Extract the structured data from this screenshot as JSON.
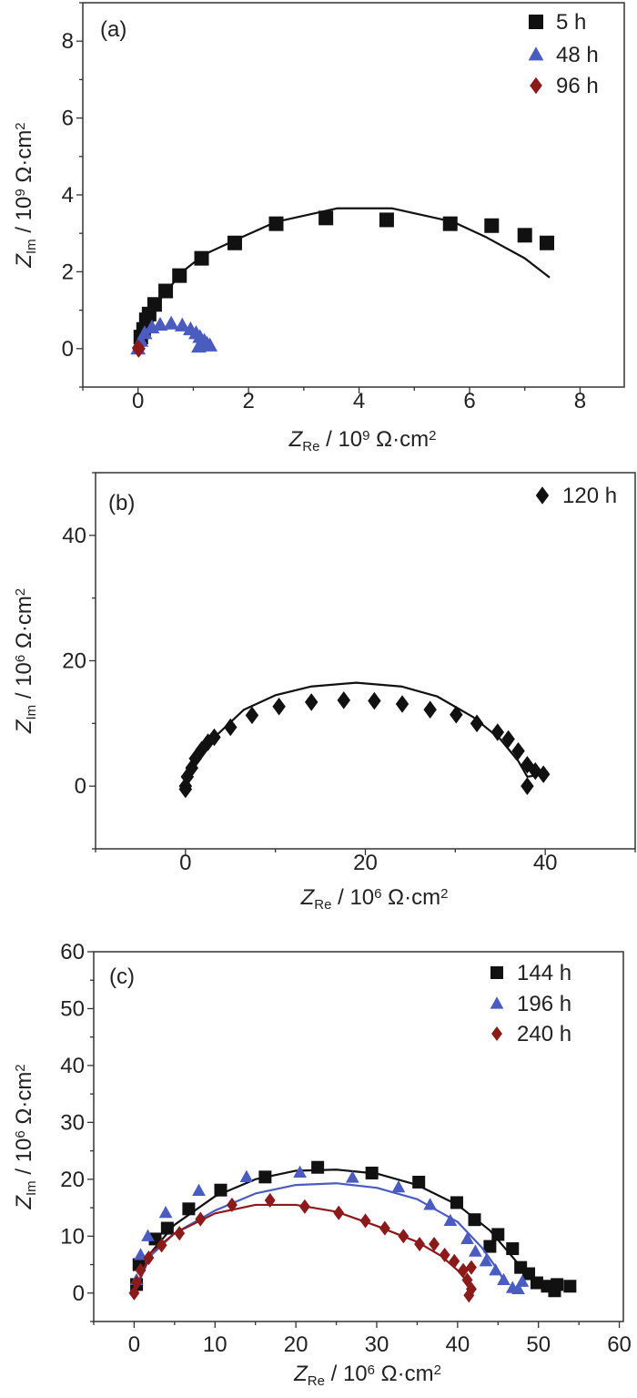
{
  "chart_data": [
    {
      "type": "scatter",
      "panel_label": "(a)",
      "xlabel": {
        "symbol": "Z",
        "sub": "Re",
        "unit": " / 10",
        "exp": "9",
        "unit2": " Ω·cm",
        "exp2": "2"
      },
      "ylabel": {
        "symbol": "Z",
        "sub": "Im",
        "unit": " / 10",
        "exp": "9",
        "unit2": " Ω·cm",
        "exp2": "2"
      },
      "xlim": [
        -1,
        8.8
      ],
      "ylim": [
        -1,
        9
      ],
      "xticks": [
        0,
        2,
        4,
        6,
        8
      ],
      "yticks": [
        0,
        2,
        4,
        6,
        8
      ],
      "minor_step": 1,
      "legend_position": "top-right",
      "series": [
        {
          "name": "5 h",
          "marker": "square",
          "color": "#111111",
          "points": [
            [
              0.05,
              0.3
            ],
            [
              0.1,
              0.5
            ],
            [
              0.15,
              0.75
            ],
            [
              0.2,
              0.9
            ],
            [
              0.3,
              1.15
            ],
            [
              0.5,
              1.5
            ],
            [
              0.75,
              1.9
            ],
            [
              1.15,
              2.35
            ],
            [
              1.75,
              2.75
            ],
            [
              2.5,
              3.25
            ],
            [
              3.4,
              3.4
            ],
            [
              4.5,
              3.35
            ],
            [
              5.65,
              3.25
            ],
            [
              6.4,
              3.2
            ],
            [
              7.0,
              2.95
            ],
            [
              7.4,
              2.75
            ]
          ],
          "fit": [
            [
              0,
              0
            ],
            [
              0.1,
              0.5
            ],
            [
              0.3,
              1.1
            ],
            [
              0.8,
              2.0
            ],
            [
              1.2,
              2.45
            ],
            [
              1.8,
              2.85
            ],
            [
              2.5,
              3.3
            ],
            [
              3.6,
              3.65
            ],
            [
              4.6,
              3.65
            ],
            [
              5.7,
              3.3
            ],
            [
              6.3,
              2.9
            ],
            [
              7.0,
              2.35
            ],
            [
              7.45,
              1.85
            ]
          ]
        },
        {
          "name": "48 h",
          "marker": "triangle",
          "color": "#4a5cc0",
          "points": [
            [
              0,
              0
            ],
            [
              0.05,
              0.2
            ],
            [
              0.12,
              0.4
            ],
            [
              0.25,
              0.55
            ],
            [
              0.4,
              0.62
            ],
            [
              0.6,
              0.65
            ],
            [
              0.8,
              0.6
            ],
            [
              0.95,
              0.5
            ],
            [
              1.05,
              0.4
            ],
            [
              1.12,
              0.3
            ],
            [
              1.2,
              0.2
            ],
            [
              1.25,
              0.12
            ],
            [
              1.3,
              0.08
            ],
            [
              1.1,
              0.05
            ]
          ],
          "fit": []
        },
        {
          "name": "96 h",
          "marker": "diamond",
          "color": "#8b1a1a",
          "points": [
            [
              0.02,
              0
            ],
            [
              0.0,
              0.02
            ],
            [
              0.01,
              -0.02
            ]
          ],
          "fit": []
        }
      ]
    },
    {
      "type": "scatter",
      "panel_label": "(b)",
      "xlabel": {
        "symbol": "Z",
        "sub": "Re",
        "unit": " / 10",
        "exp": "6",
        "unit2": " Ω·cm",
        "exp2": "2"
      },
      "ylabel": {
        "symbol": "Z",
        "sub": "Im",
        "unit": " / 10",
        "exp": "6",
        "unit2": " Ω·cm",
        "exp2": "2"
      },
      "xlim": [
        -10,
        50
      ],
      "ylim": [
        -10,
        50
      ],
      "xticks": [
        0,
        20,
        40
      ],
      "yticks": [
        0,
        20,
        40
      ],
      "minor_step": 10,
      "legend_position": "top-right",
      "series": [
        {
          "name": "120 h",
          "marker": "diamond",
          "color": "#111111",
          "points": [
            [
              0,
              -0.5
            ],
            [
              0,
              0
            ],
            [
              0.2,
              1.5
            ],
            [
              0.7,
              2.9
            ],
            [
              1.1,
              4.4
            ],
            [
              1.8,
              5.8
            ],
            [
              2.5,
              7
            ],
            [
              3.2,
              7.8
            ],
            [
              5,
              9.4
            ],
            [
              7.4,
              11.3
            ],
            [
              10.4,
              12.7
            ],
            [
              14,
              13.4
            ],
            [
              17.6,
              13.7
            ],
            [
              21,
              13.6
            ],
            [
              24.1,
              13.1
            ],
            [
              27.2,
              12.2
            ],
            [
              30.1,
              11.4
            ],
            [
              32.4,
              10
            ],
            [
              34.7,
              8.6
            ],
            [
              35.9,
              7.5
            ],
            [
              37,
              5.6
            ],
            [
              38,
              3.4
            ],
            [
              38.9,
              2.4
            ],
            [
              39.8,
              1.9
            ],
            [
              38,
              0
            ]
          ],
          "fit": [
            [
              0,
              0
            ],
            [
              1,
              4
            ],
            [
              3,
              7.5
            ],
            [
              6.5,
              12.2
            ],
            [
              10,
              14.5
            ],
            [
              14,
              15.9
            ],
            [
              19,
              16.5
            ],
            [
              24,
              15.9
            ],
            [
              28,
              14.3
            ],
            [
              32,
              11
            ],
            [
              35,
              7.5
            ],
            [
              37,
              4
            ],
            [
              38,
              1.5
            ],
            [
              39.5,
              1.8
            ]
          ]
        }
      ]
    },
    {
      "type": "scatter",
      "panel_label": "(c)",
      "xlabel": {
        "symbol": "Z",
        "sub": "Re",
        "unit": " / 10",
        "exp": "6",
        "unit2": " Ω·cm",
        "exp2": "2"
      },
      "ylabel": {
        "symbol": "Z",
        "sub": "Im",
        "unit": " / 10",
        "exp": "6",
        "unit2": " Ω·cm",
        "exp2": "2"
      },
      "xlim": [
        -5,
        60.5
      ],
      "ylim": [
        -5,
        60
      ],
      "xticks": [
        0,
        10,
        20,
        30,
        40,
        50,
        60
      ],
      "yticks": [
        0,
        10,
        20,
        30,
        40,
        50,
        60
      ],
      "minor_step": 5,
      "legend_position": "top-right",
      "series": [
        {
          "name": "144 h",
          "marker": "square",
          "color": "#111111",
          "points": [
            [
              0.3,
              1.5
            ],
            [
              0.6,
              5
            ],
            [
              2.6,
              9.5
            ],
            [
              4.1,
              11.4
            ],
            [
              6.75,
              14.8
            ],
            [
              10.7,
              18.1
            ],
            [
              16.2,
              20.4
            ],
            [
              22.7,
              22.1
            ],
            [
              29.4,
              21.1
            ],
            [
              35.2,
              19.5
            ],
            [
              39.9,
              15.9
            ],
            [
              42.1,
              12.9
            ],
            [
              44,
              8.2
            ],
            [
              45,
              10.3
            ],
            [
              46.8,
              7.8
            ],
            [
              47.8,
              4.5
            ],
            [
              48.8,
              3.4
            ],
            [
              49.8,
              1.8
            ],
            [
              51.1,
              1.2
            ],
            [
              52,
              0.4
            ],
            [
              52.3,
              1.5
            ],
            [
              53.9,
              1.2
            ]
          ],
          "fit": [
            [
              0,
              0
            ],
            [
              2,
              7
            ],
            [
              5,
              12
            ],
            [
              10,
              17
            ],
            [
              15,
              20
            ],
            [
              20,
              21.5
            ],
            [
              25,
              21.7
            ],
            [
              30,
              21
            ],
            [
              35,
              19
            ],
            [
              40,
              15.5
            ],
            [
              44,
              11
            ],
            [
              47,
              6
            ],
            [
              49,
              2.5
            ],
            [
              51,
              1
            ]
          ]
        },
        {
          "name": "196 h",
          "marker": "triangle",
          "color": "#4a5cc0",
          "points": [
            [
              0.3,
              2.3
            ],
            [
              0.8,
              6.7
            ],
            [
              1.7,
              10
            ],
            [
              3.9,
              14.1
            ],
            [
              8,
              18
            ],
            [
              13.9,
              20.4
            ],
            [
              20.5,
              21.2
            ],
            [
              27,
              20.3
            ],
            [
              32.7,
              18.6
            ],
            [
              36.6,
              15.5
            ],
            [
              39.1,
              12.7
            ],
            [
              41.2,
              9.5
            ],
            [
              42.2,
              7.3
            ],
            [
              43.5,
              5.6
            ],
            [
              44.7,
              4
            ],
            [
              45.7,
              2.3
            ],
            [
              46.8,
              0.9
            ],
            [
              47.5,
              0.7
            ],
            [
              48,
              2
            ]
          ],
          "fit": [
            [
              0,
              0
            ],
            [
              2,
              6.5
            ],
            [
              5,
              10.5
            ],
            [
              10,
              14.5
            ],
            [
              15,
              17.5
            ],
            [
              20,
              19
            ],
            [
              25,
              19.3
            ],
            [
              30,
              18.5
            ],
            [
              35,
              16.5
            ],
            [
              40,
              12.5
            ],
            [
              43,
              8
            ],
            [
              45,
              4
            ],
            [
              46,
              1.5
            ]
          ]
        },
        {
          "name": "240 h",
          "marker": "diamond",
          "color": "#8b1a1a",
          "points": [
            [
              0,
              0
            ],
            [
              0.3,
              1.8
            ],
            [
              0.8,
              4
            ],
            [
              1.8,
              6.2
            ],
            [
              3.4,
              8.4
            ],
            [
              5.6,
              10.5
            ],
            [
              8.2,
              13
            ],
            [
              12.1,
              15.5
            ],
            [
              16.8,
              16.3
            ],
            [
              21.1,
              15.2
            ],
            [
              25.3,
              14.1
            ],
            [
              28.6,
              12.7
            ],
            [
              31,
              11.4
            ],
            [
              33.3,
              10
            ],
            [
              35.3,
              8.6
            ],
            [
              37.1,
              8.6
            ],
            [
              38.4,
              6.7
            ],
            [
              39.6,
              5.6
            ],
            [
              40.7,
              4
            ],
            [
              41.7,
              4.5
            ],
            [
              41.2,
              2.3
            ],
            [
              41.7,
              0.7
            ],
            [
              41.4,
              -0.4
            ]
          ],
          "fit": [
            [
              0,
              0
            ],
            [
              2,
              7
            ],
            [
              5,
              10.5
            ],
            [
              10,
              14
            ],
            [
              15,
              15.5
            ],
            [
              20,
              15.5
            ],
            [
              25,
              14.3
            ],
            [
              30,
              11.8
            ],
            [
              35,
              9
            ],
            [
              38,
              6.5
            ],
            [
              40,
              4
            ],
            [
              41.5,
              1.5
            ]
          ]
        }
      ]
    }
  ]
}
